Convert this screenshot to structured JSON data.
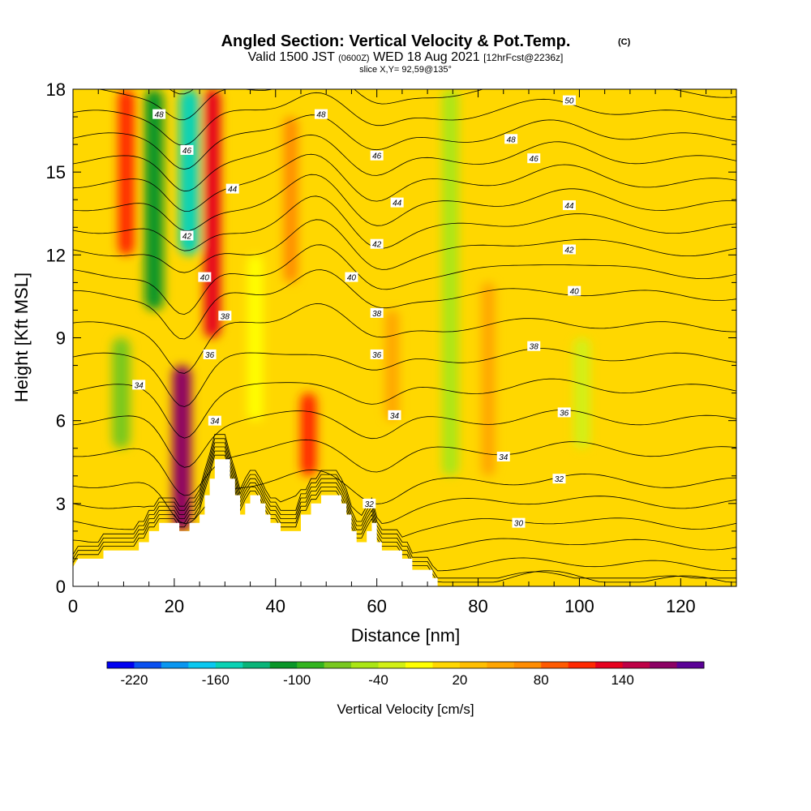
{
  "header": {
    "title": "Angled Section: Vertical Velocity & Pot.Temp.",
    "title_mark": "(C)",
    "valid_prefix": "Valid 1500 JST",
    "valid_utc": "(0600Z)",
    "valid_date": "WED 18 Aug 2021",
    "forecast": "[12hrFcst@2236z]",
    "slice": "slice X,Y= 92,59@135°"
  },
  "chart_data": {
    "type": "heatmap",
    "xlabel": "Distance [nm]",
    "ylabel": "Height [Kft MSL]",
    "xlim": [
      0,
      131
    ],
    "ylim": [
      0,
      18
    ],
    "x_ticks": [
      "0",
      "20",
      "40",
      "60",
      "80",
      "100",
      "120"
    ],
    "y_ticks": [
      "0",
      "3",
      "6",
      "9",
      "12",
      "15",
      "18"
    ],
    "colorbar": {
      "label": "Vertical Velocity [cm/s]",
      "tick_labels": [
        "-220",
        "-160",
        "-100",
        "-40",
        "20",
        "80",
        "140"
      ],
      "levels": [
        -240,
        -220,
        -200,
        -180,
        -160,
        -140,
        -120,
        -100,
        -80,
        -60,
        -40,
        -20,
        0,
        20,
        40,
        60,
        80,
        100,
        120,
        140,
        160,
        180
      ],
      "colors": [
        "#0000f0",
        "#0a50f0",
        "#0a96f0",
        "#0ac8f0",
        "#0ad2b4",
        "#0ab478",
        "#0a9628",
        "#32b41e",
        "#78c81e",
        "#aae614",
        "#d2f014",
        "#ffff00",
        "#ffd700",
        "#ffbe00",
        "#ffa500",
        "#ff8c00",
        "#ff5a00",
        "#ff2800",
        "#e6001e",
        "#be0046",
        "#8c0064",
        "#5a0096"
      ]
    },
    "background_value": 10,
    "updraft_columns": [
      {
        "x": 10.5,
        "y_bottom": 12,
        "y_top": 18,
        "value": 110
      },
      {
        "x": 21.5,
        "y_bottom": 2,
        "y_top": 8,
        "value": 175
      },
      {
        "x": 27.5,
        "y_bottom": 9,
        "y_top": 18,
        "value": 120
      },
      {
        "x": 46.5,
        "y_bottom": 4,
        "y_top": 7,
        "value": 110
      },
      {
        "x": 43,
        "y_bottom": 11,
        "y_top": 17,
        "value": 70
      },
      {
        "x": 63,
        "y_bottom": 6,
        "y_top": 10,
        "value": 55
      },
      {
        "x": 82,
        "y_bottom": 4,
        "y_top": 11,
        "value": 50
      }
    ],
    "downdraft_columns": [
      {
        "x": 16,
        "y_bottom": 10,
        "y_top": 18,
        "value": -110
      },
      {
        "x": 23,
        "y_bottom": 12,
        "y_top": 18,
        "value": -150
      },
      {
        "x": 9.5,
        "y_bottom": 5,
        "y_top": 9,
        "value": -80
      },
      {
        "x": 74.5,
        "y_bottom": 4,
        "y_top": 18,
        "value": -45
      },
      {
        "x": 100.5,
        "y_bottom": 5,
        "y_top": 9,
        "value": -40
      },
      {
        "x": 36,
        "y_bottom": 6,
        "y_top": 12,
        "value": -20
      }
    ],
    "pot_temp_contours": {
      "levels": [
        28,
        29,
        30,
        31,
        32,
        33,
        34,
        35,
        36,
        37,
        38,
        39,
        40,
        41,
        42,
        43,
        44,
        45,
        46,
        47,
        48,
        49,
        50
      ],
      "labels": [
        {
          "text": "48",
          "x": 17,
          "y": 17.1
        },
        {
          "text": "46",
          "x": 22.5,
          "y": 15.8
        },
        {
          "text": "44",
          "x": 31.5,
          "y": 14.4
        },
        {
          "text": "42",
          "x": 22.5,
          "y": 12.7
        },
        {
          "text": "40",
          "x": 26,
          "y": 11.2
        },
        {
          "text": "38",
          "x": 30,
          "y": 9.8
        },
        {
          "text": "36",
          "x": 27,
          "y": 8.4
        },
        {
          "text": "34",
          "x": 13,
          "y": 7.3
        },
        {
          "text": "34",
          "x": 28,
          "y": 6.0
        },
        {
          "text": "48",
          "x": 49,
          "y": 17.1
        },
        {
          "text": "46",
          "x": 60,
          "y": 15.6
        },
        {
          "text": "44",
          "x": 64,
          "y": 13.9
        },
        {
          "text": "42",
          "x": 60,
          "y": 12.4
        },
        {
          "text": "40",
          "x": 55,
          "y": 11.2
        },
        {
          "text": "38",
          "x": 60,
          "y": 9.9
        },
        {
          "text": "36",
          "x": 60,
          "y": 8.4
        },
        {
          "text": "34",
          "x": 63.5,
          "y": 6.2
        },
        {
          "text": "32",
          "x": 58.5,
          "y": 3.0
        },
        {
          "text": "50",
          "x": 98,
          "y": 17.6
        },
        {
          "text": "48",
          "x": 86.5,
          "y": 16.2
        },
        {
          "text": "46",
          "x": 91,
          "y": 15.5
        },
        {
          "text": "44",
          "x": 98,
          "y": 13.8
        },
        {
          "text": "42",
          "x": 98,
          "y": 12.2
        },
        {
          "text": "40",
          "x": 99,
          "y": 10.7
        },
        {
          "text": "38",
          "x": 91,
          "y": 8.7
        },
        {
          "text": "36",
          "x": 97,
          "y": 6.3
        },
        {
          "text": "34",
          "x": 85,
          "y": 4.7
        },
        {
          "text": "32",
          "x": 96,
          "y": 3.9
        },
        {
          "text": "30",
          "x": 88,
          "y": 2.3
        }
      ]
    },
    "terrain": [
      [
        0,
        0.7
      ],
      [
        1,
        1.0
      ],
      [
        6,
        1.0
      ],
      [
        6,
        1.3
      ],
      [
        13,
        1.3
      ],
      [
        13,
        1.6
      ],
      [
        15,
        1.6
      ],
      [
        15,
        2.0
      ],
      [
        17,
        2.0
      ],
      [
        17,
        2.3
      ],
      [
        21,
        2.3
      ],
      [
        21,
        2.0
      ],
      [
        23,
        2.0
      ],
      [
        23,
        2.3
      ],
      [
        25,
        2.3
      ],
      [
        25,
        2.6
      ],
      [
        26,
        2.6
      ],
      [
        26,
        3.3
      ],
      [
        27,
        3.3
      ],
      [
        27,
        3.9
      ],
      [
        28,
        3.9
      ],
      [
        28,
        4.6
      ],
      [
        31,
        4.6
      ],
      [
        31,
        3.9
      ],
      [
        32,
        3.9
      ],
      [
        32,
        3.3
      ],
      [
        33,
        3.3
      ],
      [
        33,
        2.6
      ],
      [
        34,
        2.6
      ],
      [
        34,
        3.0
      ],
      [
        35,
        3.0
      ],
      [
        35,
        3.3
      ],
      [
        37,
        3.3
      ],
      [
        37,
        3.0
      ],
      [
        38,
        3.0
      ],
      [
        38,
        2.6
      ],
      [
        39,
        2.6
      ],
      [
        39,
        2.3
      ],
      [
        41,
        2.3
      ],
      [
        41,
        2.0
      ],
      [
        45,
        2.0
      ],
      [
        45,
        2.6
      ],
      [
        47,
        2.6
      ],
      [
        47,
        3.0
      ],
      [
        49,
        3.0
      ],
      [
        49,
        3.3
      ],
      [
        53,
        3.3
      ],
      [
        53,
        3.0
      ],
      [
        54,
        3.0
      ],
      [
        54,
        2.6
      ],
      [
        55,
        2.6
      ],
      [
        55,
        2.0
      ],
      [
        56,
        2.0
      ],
      [
        56,
        1.6
      ],
      [
        58,
        1.6
      ],
      [
        58,
        2.0
      ],
      [
        59,
        2.0
      ],
      [
        59,
        2.3
      ],
      [
        60,
        2.3
      ],
      [
        60,
        1.6
      ],
      [
        61,
        1.6
      ],
      [
        61,
        1.3
      ],
      [
        65,
        1.3
      ],
      [
        65,
        1.0
      ],
      [
        67,
        1.0
      ],
      [
        67,
        0.6
      ],
      [
        71,
        0.6
      ],
      [
        71,
        0.3
      ],
      [
        72,
        0.3
      ],
      [
        72,
        0
      ]
    ]
  }
}
